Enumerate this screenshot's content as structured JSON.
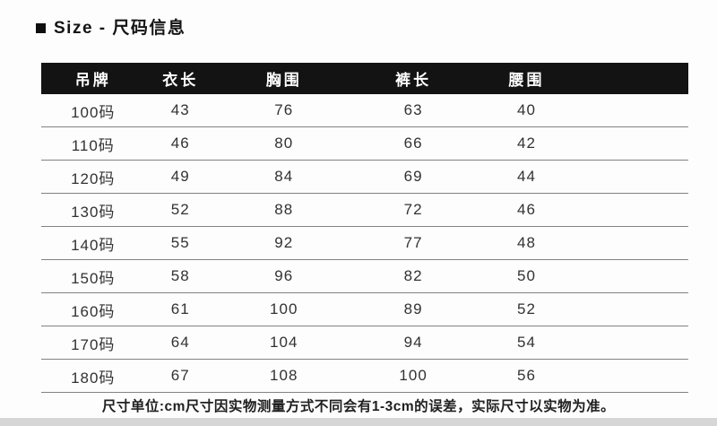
{
  "title": "Size - 尺码信息",
  "table": {
    "headers": [
      "吊牌",
      "衣长",
      "胸围",
      "裤长",
      "腰围"
    ],
    "rows": [
      [
        "100码",
        "43",
        "76",
        "63",
        "40"
      ],
      [
        "110码",
        "46",
        "80",
        "66",
        "42"
      ],
      [
        "120码",
        "49",
        "84",
        "69",
        "44"
      ],
      [
        "130码",
        "52",
        "88",
        "72",
        "46"
      ],
      [
        "140码",
        "55",
        "92",
        "77",
        "48"
      ],
      [
        "150码",
        "58",
        "96",
        "82",
        "50"
      ],
      [
        "160码",
        "61",
        "100",
        "89",
        "52"
      ],
      [
        "170码",
        "64",
        "104",
        "94",
        "54"
      ],
      [
        "180码",
        "67",
        "108",
        "100",
        "56"
      ]
    ]
  },
  "footer_note": "尺寸单位:cm尺寸因实物测量方式不同会有1-3cm的误差，实际尺寸以实物为准。",
  "colors": {
    "header_bg": "#131313",
    "header_text": "#ffffff",
    "row_line": "#828282",
    "body_text": "#323232",
    "bottom_band": "#d6d6d6"
  }
}
